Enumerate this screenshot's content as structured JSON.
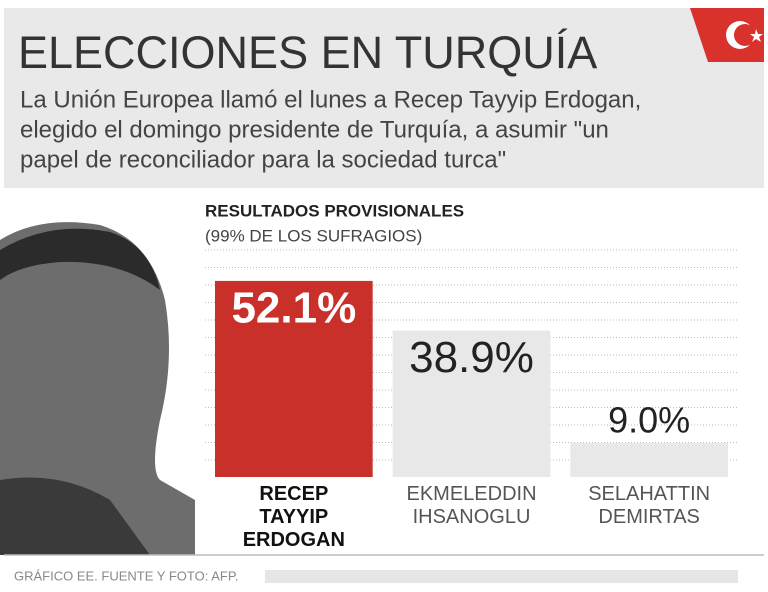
{
  "header": {
    "title": "ELECCIONES EN TURQUÍA",
    "description": [
      "La Unión Europea llamó el lunes a Recep Tayyip Erdogan,",
      "elegido el domingo presidente de Turquía, a asumir \"un",
      "papel de reconciliador para la sociedad turca\""
    ]
  },
  "chart_data": {
    "type": "bar",
    "title": "RESULTADOS PROVISIONALES",
    "subtitle": "(99% DE LOS SUFRAGIOS)",
    "categories": [
      "RECEP TAYYIP ERDOGAN",
      "EKMELEDDIN IHSANOGLU",
      "SELAHATTIN DEMIRTAS"
    ],
    "values": [
      52.1,
      38.9,
      9.0
    ],
    "value_labels": [
      "52.1%",
      "38.9%",
      "9.0%"
    ],
    "colors": [
      "#c9302a",
      "#e8e8e8",
      "#e8e8e8"
    ],
    "ylim": [
      0,
      55
    ],
    "grid": true
  },
  "footer": {
    "source": "GRÁFICO EE. FUENTE Y FOTO: AFP."
  }
}
